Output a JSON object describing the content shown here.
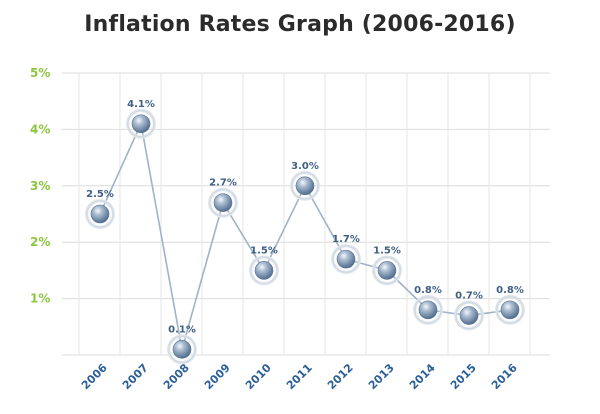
{
  "chart_data": {
    "type": "line",
    "title": "Inflation Rates Graph (2006-2016)",
    "xlabel": "",
    "ylabel": "",
    "x": [
      "2006",
      "2007",
      "2008",
      "2009",
      "2010",
      "2011",
      "2012",
      "2013",
      "2014",
      "2015",
      "2016"
    ],
    "values": [
      2.5,
      4.1,
      0.1,
      2.7,
      1.5,
      3.0,
      1.7,
      1.5,
      0.8,
      0.7,
      0.8
    ],
    "data_labels": [
      "2.5%",
      "4.1%",
      "0.1%",
      "2.7%",
      "1.5%",
      "3.0%",
      "1.7%",
      "1.5%",
      "0.8%",
      "0.7%",
      "0.8%"
    ],
    "ylim": [
      0,
      5
    ],
    "yticks": [
      1,
      2,
      3,
      4,
      5
    ],
    "ytick_labels": [
      "1%",
      "2%",
      "3%",
      "4%",
      "5%"
    ],
    "grid": true,
    "legend": "none",
    "colors": {
      "line": "#9fb3c8",
      "marker": "#6f8aa8",
      "halo": "#d3dbe4",
      "ytick": "#8cc63f",
      "xtick": "#2a5f9a",
      "label": "#3f5f86",
      "grid": "#dcdcdc"
    }
  }
}
